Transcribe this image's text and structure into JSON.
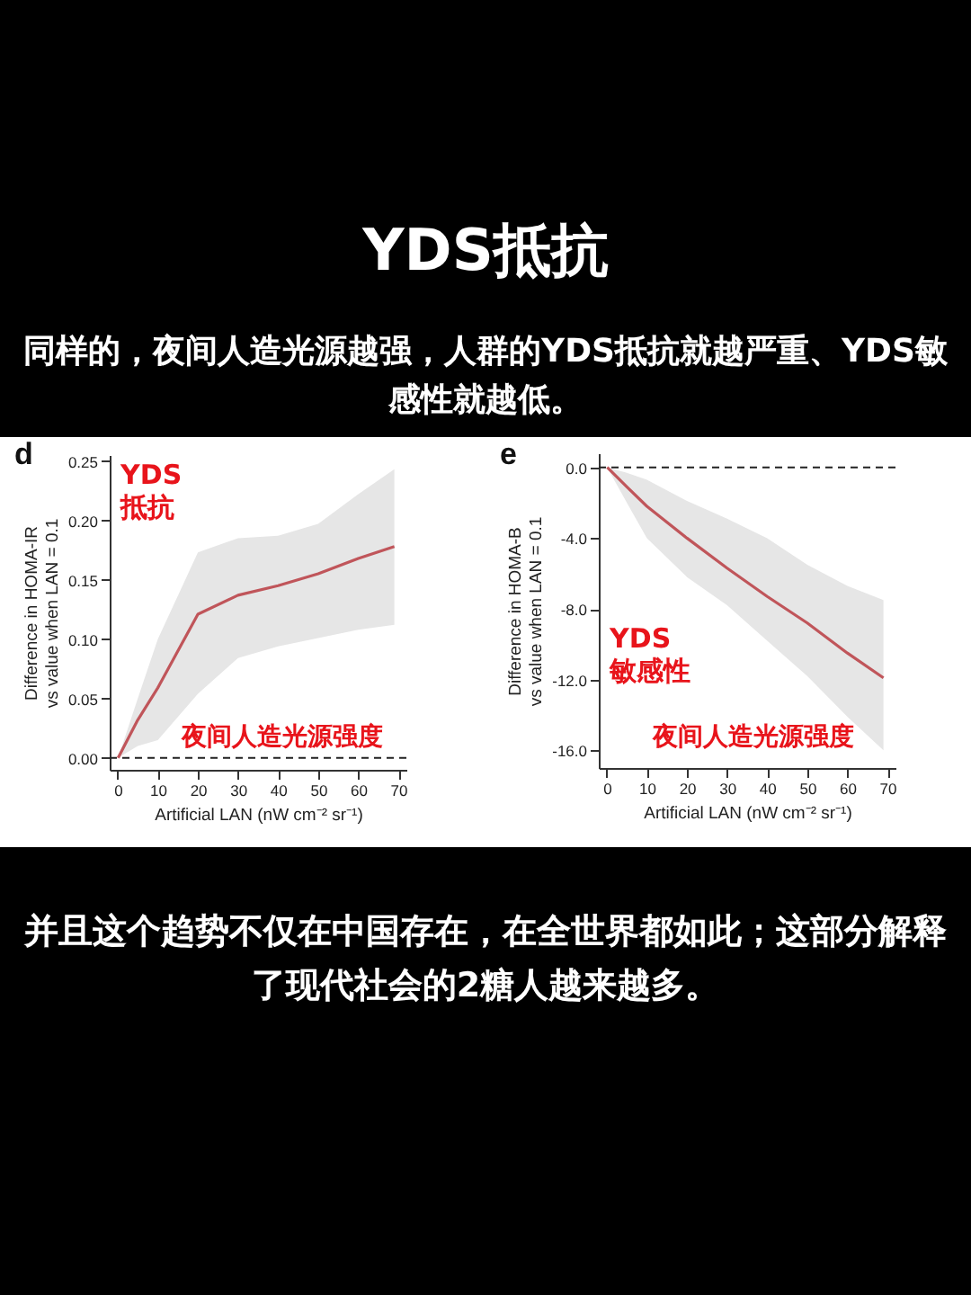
{
  "chart_data": [
    {
      "type": "line",
      "title": "YDS抵抗",
      "subtitle": "同样的，夜间人造光源越强，人群的YDS抵抗就越严重、YDS敏感性就越低。",
      "xlabel": "Artificial LAN (nW cm⁻² sr⁻¹)",
      "ylabel": "Difference in HOMA-IR\nvs value when LAN = 0.1",
      "x": [
        0.1,
        5,
        10,
        20,
        30,
        40,
        50,
        60,
        69
      ],
      "series": [
        {
          "color": "#c0555a",
          "values": [
            0,
            0.032,
            0.059,
            0.121,
            0.137,
            0.145,
            0.155,
            0.168,
            0.178
          ],
          "lower": [
            0,
            0.01,
            0.015,
            0.054,
            0.084,
            0.094,
            0.101,
            0.108,
            0.112
          ],
          "upper": [
            0,
            0.05,
            0.1,
            0.173,
            0.185,
            0.187,
            0.197,
            0.222,
            0.243
          ]
        }
      ],
      "xlim": [
        -2,
        72
      ],
      "ylim": [
        -0.01,
        0.255
      ],
      "xticks": [
        0,
        10,
        20,
        30,
        40,
        50,
        60,
        70
      ],
      "yticks": [
        {
          "value": 0,
          "label": "0.00"
        },
        {
          "value": 0.05,
          "label": "0.05"
        },
        {
          "value": 0.1,
          "label": "0.10"
        },
        {
          "value": 0.15,
          "label": "0.15"
        },
        {
          "value": 0.2,
          "label": "0.20"
        },
        {
          "value": 0.25,
          "label": "0.25"
        }
      ],
      "ref_lines": [
        {
          "axis": "y",
          "value": 0,
          "line_style": "dashed"
        }
      ],
      "annotations": [
        "d",
        "YDS",
        "抵抗",
        "夜间人造光源强度"
      ]
    },
    {
      "type": "line",
      "xlabel": "Artificial LAN (nW cm⁻² sr⁻¹)",
      "ylabel": "Difference in HOMA-B\nvs value when LAN = 0.1",
      "x": [
        0.1,
        5,
        10,
        20,
        30,
        40,
        50,
        60,
        69
      ],
      "series": [
        {
          "color": "#c0555a",
          "values": [
            0,
            -1.1,
            -2.2,
            -4.0,
            -5.7,
            -7.3,
            -8.8,
            -10.5,
            -11.9
          ],
          "lower": [
            0,
            -2,
            -4.0,
            -6.2,
            -7.8,
            -9.8,
            -11.8,
            -14.1,
            -16.0
          ],
          "upper": [
            0,
            -0.3,
            -0.7,
            -1.9,
            -2.9,
            -4.0,
            -5.5,
            -6.7,
            -7.5
          ]
        }
      ],
      "xlim": [
        -2,
        72
      ],
      "ylim": [
        -17,
        0.8
      ],
      "xticks": [
        0,
        10,
        20,
        30,
        40,
        50,
        60,
        70
      ],
      "yticks": [
        {
          "value": 0,
          "label": "0.0"
        },
        {
          "value": -4,
          "label": "-4.0"
        },
        {
          "value": -8,
          "label": "-8.0"
        },
        {
          "value": -12,
          "label": "-12.0"
        },
        {
          "value": -16,
          "label": "-16.0"
        }
      ],
      "ref_lines": [
        {
          "axis": "y",
          "value": 0,
          "line_style": "dashed"
        }
      ],
      "annotations": [
        "e",
        "YDS",
        "敏感性",
        "夜间人造光源强度",
        "并且这个趋势不仅在中国存在，在全世界都如此；这部分解释了现代社会的2糖人越来越多。"
      ]
    }
  ]
}
